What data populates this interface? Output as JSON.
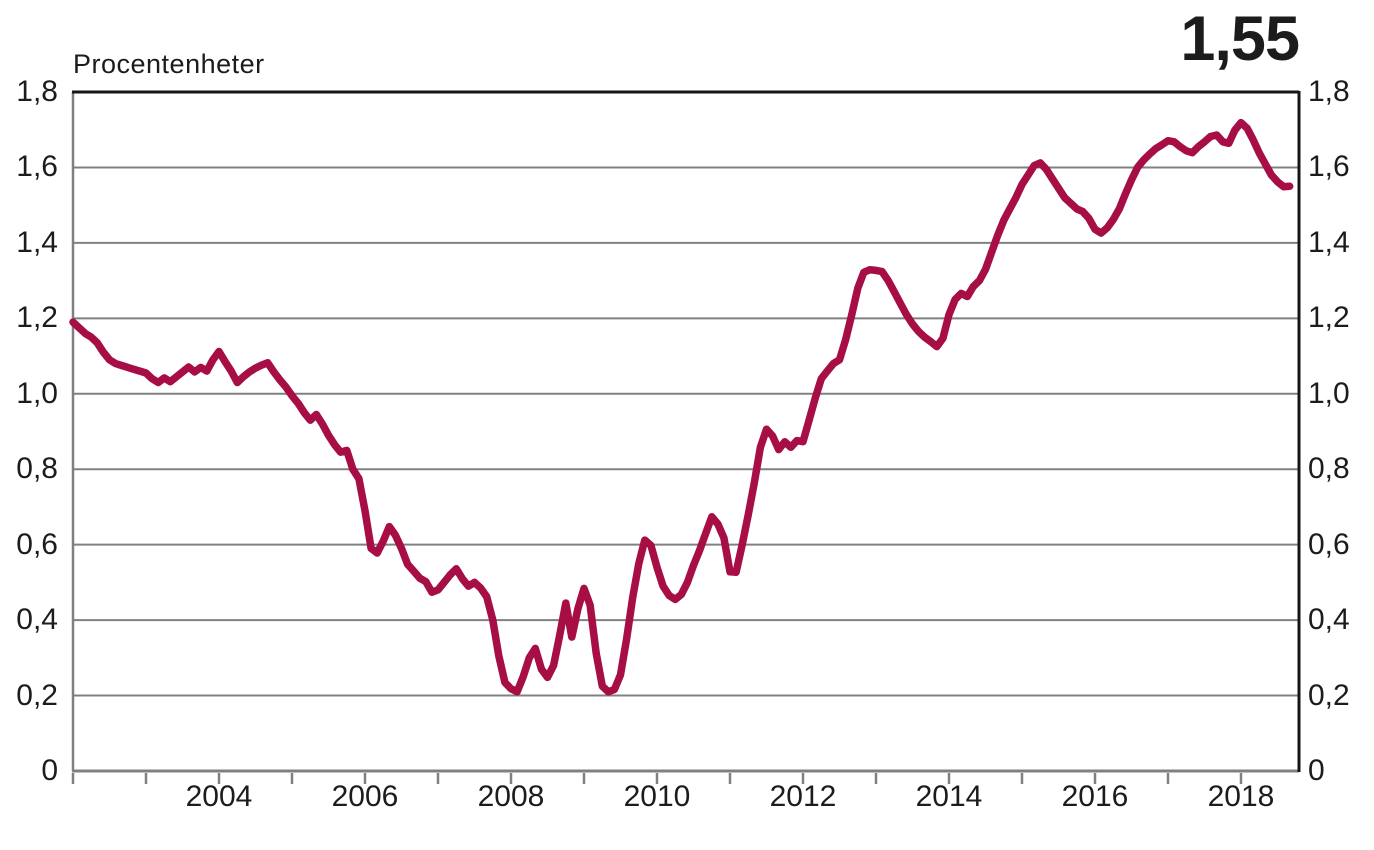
{
  "header": {
    "unit_label": "Procentenheter",
    "latest_value_label": "1,55"
  },
  "chart_data": {
    "type": "line",
    "title": "",
    "ylabel": "Procentenheter",
    "annotation_latest_value": 1.55,
    "annotation_latest_label": "1,55",
    "ylim": [
      0,
      1.8
    ],
    "grid": "horizontal-only",
    "legend": "none",
    "line_color": "#a60e45",
    "grid_color": "#808080",
    "axis_gray_color": "#808080",
    "frame_dark_color": "#161616",
    "text_color": "#1c1c1c",
    "y_ticks": [
      {
        "value": 0,
        "label": "0"
      },
      {
        "value": 0.2,
        "label": "0,2"
      },
      {
        "value": 0.4,
        "label": "0,4"
      },
      {
        "value": 0.6,
        "label": "0,6"
      },
      {
        "value": 0.8,
        "label": "0,8"
      },
      {
        "value": 1.0,
        "label": "1,0"
      },
      {
        "value": 1.2,
        "label": "1,2"
      },
      {
        "value": 1.4,
        "label": "1,4"
      },
      {
        "value": 1.6,
        "label": "1,6"
      },
      {
        "value": 1.8,
        "label": "1,8"
      }
    ],
    "y_tick_sides": [
      "left",
      "right"
    ],
    "x_tick_years": [
      2002,
      2003,
      2004,
      2005,
      2006,
      2007,
      2008,
      2009,
      2010,
      2011,
      2012,
      2013,
      2014,
      2015,
      2016,
      2017,
      2018
    ],
    "x_tick_labels": [
      {
        "year": 2004,
        "label": "2004"
      },
      {
        "year": 2006,
        "label": "2006"
      },
      {
        "year": 2008,
        "label": "2008"
      },
      {
        "year": 2010,
        "label": "2010"
      },
      {
        "year": 2012,
        "label": "2012"
      },
      {
        "year": 2014,
        "label": "2014"
      },
      {
        "year": 2016,
        "label": "2016"
      },
      {
        "year": 2018,
        "label": "2018"
      }
    ],
    "series": [
      {
        "name": "Procentenheter",
        "frequency": "monthly",
        "start_year": 2002,
        "start_month": 1,
        "values": [
          1.19,
          1.175,
          1.16,
          1.15,
          1.135,
          1.11,
          1.09,
          1.08,
          1.075,
          1.07,
          1.065,
          1.06,
          1.055,
          1.04,
          1.03,
          1.042,
          1.032,
          1.045,
          1.058,
          1.071,
          1.058,
          1.07,
          1.06,
          1.09,
          1.112,
          1.085,
          1.06,
          1.03,
          1.045,
          1.058,
          1.068,
          1.076,
          1.082,
          1.058,
          1.037,
          1.018,
          0.995,
          0.975,
          0.95,
          0.93,
          0.945,
          0.92,
          0.89,
          0.865,
          0.845,
          0.85,
          0.8,
          0.775,
          0.69,
          0.59,
          0.578,
          0.61,
          0.648,
          0.625,
          0.59,
          0.548,
          0.53,
          0.511,
          0.502,
          0.474,
          0.48,
          0.5,
          0.52,
          0.536,
          0.51,
          0.49,
          0.5,
          0.485,
          0.462,
          0.4,
          0.305,
          0.235,
          0.218,
          0.21,
          0.25,
          0.3,
          0.325,
          0.27,
          0.248,
          0.28,
          0.36,
          0.445,
          0.355,
          0.43,
          0.484,
          0.44,
          0.312,
          0.225,
          0.21,
          0.216,
          0.255,
          0.35,
          0.46,
          0.55,
          0.612,
          0.598,
          0.54,
          0.49,
          0.465,
          0.455,
          0.468,
          0.5,
          0.545,
          0.585,
          0.63,
          0.674,
          0.655,
          0.618,
          0.528,
          0.527,
          0.6,
          0.68,
          0.764,
          0.858,
          0.906,
          0.888,
          0.852,
          0.873,
          0.858,
          0.876,
          0.873,
          0.93,
          0.988,
          1.04,
          1.06,
          1.08,
          1.09,
          1.143,
          1.209,
          1.28,
          1.322,
          1.329,
          1.327,
          1.324,
          1.3,
          1.27,
          1.24,
          1.21,
          1.185,
          1.165,
          1.15,
          1.138,
          1.125,
          1.147,
          1.21,
          1.25,
          1.266,
          1.258,
          1.284,
          1.3,
          1.33,
          1.375,
          1.42,
          1.46,
          1.49,
          1.52,
          1.555,
          1.58,
          1.605,
          1.612,
          1.595,
          1.57,
          1.545,
          1.52,
          1.505,
          1.49,
          1.483,
          1.465,
          1.436,
          1.426,
          1.44,
          1.462,
          1.49,
          1.53,
          1.567,
          1.6,
          1.62,
          1.636,
          1.65,
          1.66,
          1.671,
          1.668,
          1.655,
          1.644,
          1.639,
          1.655,
          1.668,
          1.682,
          1.686,
          1.668,
          1.664,
          1.699,
          1.719,
          1.704,
          1.673,
          1.638,
          1.609,
          1.58,
          1.562,
          1.549,
          1.55
        ]
      }
    ]
  }
}
